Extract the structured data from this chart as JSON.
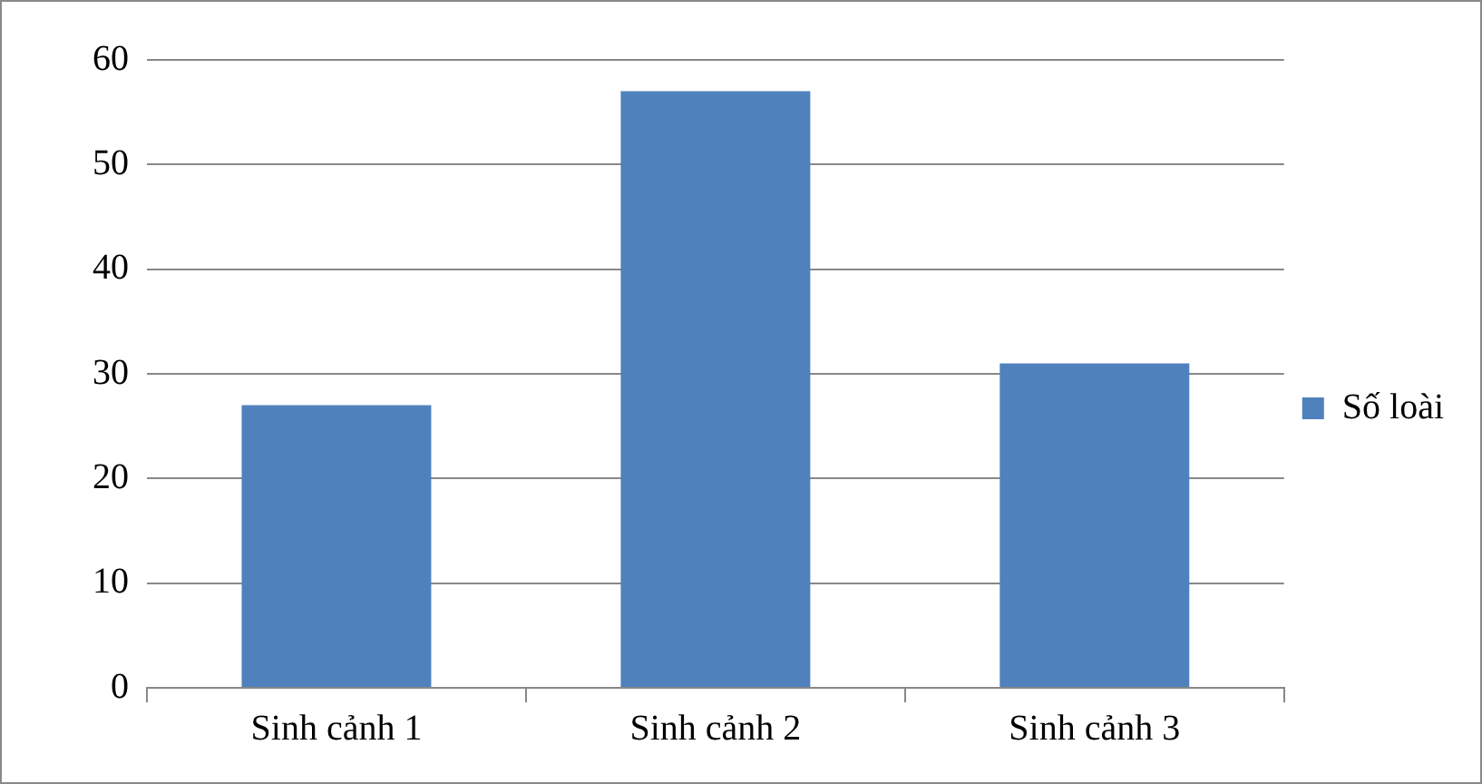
{
  "chart_data": {
    "type": "bar",
    "categories": [
      "Sinh cảnh 1",
      "Sinh cảnh 2",
      "Sinh cảnh 3"
    ],
    "series": [
      {
        "name": "Số loài",
        "color": "#4f81bd",
        "values": [
          27,
          57,
          31
        ]
      }
    ],
    "ylim": [
      0,
      60
    ],
    "yticks": [
      0,
      10,
      20,
      30,
      40,
      50,
      60
    ],
    "grid": "y",
    "legend": "right"
  }
}
